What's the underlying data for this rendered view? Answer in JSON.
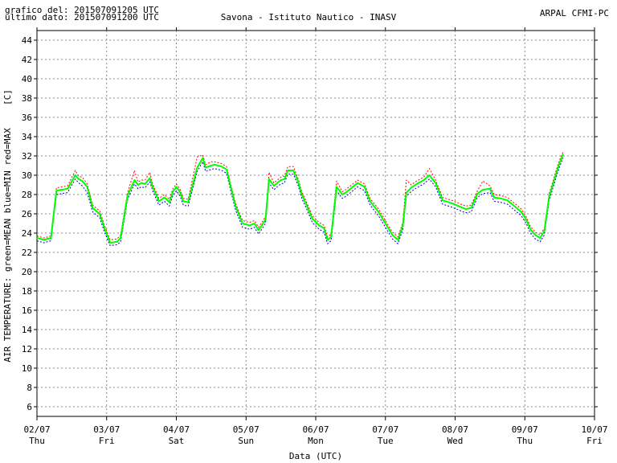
{
  "header": {
    "graph_time": "grafico del: 201507091205 UTC",
    "last_data": "ultimo dato: 201507091200 UTC",
    "station": "Savona - Istituto Nautico - INASV",
    "agency": "ARPAL CFMI-PC"
  },
  "chart_data": {
    "type": "line",
    "title": "Savona - Istituto Nautico - INASV",
    "xlabel": "Data (UTC)",
    "ylabel": "AIR TEMPERATURE: green=MEAN  blue=MIN  red=MAX",
    "unit_label": "[C]",
    "ylim": [
      5,
      45
    ],
    "yticks": [
      6,
      8,
      10,
      12,
      14,
      16,
      18,
      20,
      22,
      24,
      26,
      28,
      30,
      32,
      34,
      36,
      38,
      40,
      42,
      44
    ],
    "xlim_days": [
      0,
      8
    ],
    "grid": true,
    "colors": {
      "mean": "#00ff00",
      "min": "#0000cc",
      "max": "#ff0000",
      "grid": "#888888"
    },
    "xticks": [
      {
        "date": "02/07",
        "day": "Thu"
      },
      {
        "date": "03/07",
        "day": "Fri"
      },
      {
        "date": "04/07",
        "day": "Sat"
      },
      {
        "date": "05/07",
        "day": "Sun"
      },
      {
        "date": "06/07",
        "day": "Mon"
      },
      {
        "date": "07/07",
        "day": "Tue"
      },
      {
        "date": "08/07",
        "day": "Wed"
      },
      {
        "date": "09/07",
        "day": "Thu"
      },
      {
        "date": "10/07",
        "day": "Fri"
      }
    ],
    "series": [
      {
        "name": "MEAN",
        "points": [
          [
            0.0,
            23.5
          ],
          [
            0.1,
            23.3
          ],
          [
            0.2,
            23.5
          ],
          [
            0.28,
            28.4
          ],
          [
            0.36,
            28.5
          ],
          [
            0.44,
            28.6
          ],
          [
            0.55,
            30.0
          ],
          [
            0.6,
            29.6
          ],
          [
            0.65,
            29.4
          ],
          [
            0.72,
            28.8
          ],
          [
            0.8,
            26.6
          ],
          [
            0.9,
            26.0
          ],
          [
            0.97,
            24.5
          ],
          [
            1.05,
            23.0
          ],
          [
            1.15,
            23.1
          ],
          [
            1.2,
            23.5
          ],
          [
            1.3,
            27.9
          ],
          [
            1.4,
            29.5
          ],
          [
            1.45,
            29.0
          ],
          [
            1.5,
            29.2
          ],
          [
            1.55,
            29.1
          ],
          [
            1.62,
            29.7
          ],
          [
            1.66,
            28.8
          ],
          [
            1.75,
            27.3
          ],
          [
            1.83,
            27.7
          ],
          [
            1.9,
            27.2
          ],
          [
            1.95,
            28.3
          ],
          [
            2.0,
            28.8
          ],
          [
            2.05,
            28.3
          ],
          [
            2.1,
            27.3
          ],
          [
            2.17,
            27.2
          ],
          [
            2.3,
            30.8
          ],
          [
            2.38,
            31.8
          ],
          [
            2.42,
            30.8
          ],
          [
            2.5,
            31.0
          ],
          [
            2.55,
            31.1
          ],
          [
            2.65,
            30.9
          ],
          [
            2.72,
            30.6
          ],
          [
            2.78,
            28.8
          ],
          [
            2.85,
            26.8
          ],
          [
            2.95,
            25.0
          ],
          [
            3.05,
            24.8
          ],
          [
            3.12,
            25.0
          ],
          [
            3.18,
            24.3
          ],
          [
            3.28,
            25.4
          ],
          [
            3.33,
            29.6
          ],
          [
            3.4,
            28.9
          ],
          [
            3.5,
            29.5
          ],
          [
            3.55,
            29.6
          ],
          [
            3.6,
            30.5
          ],
          [
            3.68,
            30.5
          ],
          [
            3.75,
            29.3
          ],
          [
            3.8,
            28.0
          ],
          [
            3.87,
            26.9
          ],
          [
            3.95,
            25.5
          ],
          [
            4.05,
            24.8
          ],
          [
            4.12,
            24.5
          ],
          [
            4.17,
            23.3
          ],
          [
            4.22,
            23.6
          ],
          [
            4.3,
            28.8
          ],
          [
            4.38,
            28.0
          ],
          [
            4.43,
            28.2
          ],
          [
            4.5,
            28.6
          ],
          [
            4.6,
            29.2
          ],
          [
            4.7,
            28.8
          ],
          [
            4.78,
            27.3
          ],
          [
            4.9,
            26.2
          ],
          [
            5.0,
            25.0
          ],
          [
            5.1,
            23.8
          ],
          [
            5.18,
            23.3
          ],
          [
            5.25,
            24.8
          ],
          [
            5.3,
            28.2
          ],
          [
            5.37,
            28.7
          ],
          [
            5.45,
            29.1
          ],
          [
            5.55,
            29.5
          ],
          [
            5.63,
            30.0
          ],
          [
            5.72,
            29.2
          ],
          [
            5.82,
            27.4
          ],
          [
            5.95,
            27.1
          ],
          [
            6.05,
            26.8
          ],
          [
            6.15,
            26.5
          ],
          [
            6.23,
            26.6
          ],
          [
            6.32,
            28.1
          ],
          [
            6.4,
            28.5
          ],
          [
            6.5,
            28.6
          ],
          [
            6.56,
            27.7
          ],
          [
            6.65,
            27.6
          ],
          [
            6.75,
            27.4
          ],
          [
            6.85,
            26.8
          ],
          [
            6.95,
            26.2
          ],
          [
            7.02,
            25.4
          ],
          [
            7.08,
            24.4
          ],
          [
            7.15,
            23.8
          ],
          [
            7.22,
            23.5
          ],
          [
            7.28,
            24.2
          ],
          [
            7.35,
            27.8
          ],
          [
            7.45,
            30.2
          ],
          [
            7.5,
            31.3
          ],
          [
            7.55,
            32.2
          ]
        ]
      },
      {
        "name": "MIN",
        "points": [
          [
            0.0,
            23.2
          ],
          [
            0.1,
            23.0
          ],
          [
            0.2,
            23.2
          ],
          [
            0.28,
            28.0
          ],
          [
            0.36,
            28.1
          ],
          [
            0.44,
            28.2
          ],
          [
            0.55,
            29.6
          ],
          [
            0.6,
            29.2
          ],
          [
            0.65,
            28.9
          ],
          [
            0.72,
            28.2
          ],
          [
            0.8,
            26.2
          ],
          [
            0.9,
            25.6
          ],
          [
            0.97,
            24.1
          ],
          [
            1.05,
            22.7
          ],
          [
            1.15,
            22.8
          ],
          [
            1.2,
            23.1
          ],
          [
            1.3,
            27.5
          ],
          [
            1.4,
            29.1
          ],
          [
            1.45,
            28.6
          ],
          [
            1.5,
            28.8
          ],
          [
            1.55,
            28.7
          ],
          [
            1.62,
            29.3
          ],
          [
            1.66,
            28.4
          ],
          [
            1.75,
            26.9
          ],
          [
            1.83,
            27.3
          ],
          [
            1.9,
            26.8
          ],
          [
            1.95,
            27.9
          ],
          [
            2.0,
            28.4
          ],
          [
            2.05,
            27.9
          ],
          [
            2.1,
            26.9
          ],
          [
            2.17,
            26.8
          ],
          [
            2.3,
            30.4
          ],
          [
            2.38,
            31.4
          ],
          [
            2.42,
            30.4
          ],
          [
            2.5,
            30.6
          ],
          [
            2.55,
            30.7
          ],
          [
            2.65,
            30.5
          ],
          [
            2.72,
            30.2
          ],
          [
            2.78,
            28.4
          ],
          [
            2.85,
            26.4
          ],
          [
            2.95,
            24.6
          ],
          [
            3.05,
            24.4
          ],
          [
            3.12,
            24.6
          ],
          [
            3.18,
            23.9
          ],
          [
            3.28,
            25.0
          ],
          [
            3.33,
            29.2
          ],
          [
            3.4,
            28.5
          ],
          [
            3.5,
            29.1
          ],
          [
            3.55,
            29.2
          ],
          [
            3.6,
            30.1
          ],
          [
            3.68,
            30.1
          ],
          [
            3.75,
            28.9
          ],
          [
            3.8,
            27.6
          ],
          [
            3.87,
            26.5
          ],
          [
            3.95,
            25.1
          ],
          [
            4.05,
            24.4
          ],
          [
            4.12,
            24.1
          ],
          [
            4.17,
            22.9
          ],
          [
            4.22,
            23.2
          ],
          [
            4.3,
            28.4
          ],
          [
            4.38,
            27.6
          ],
          [
            4.43,
            27.8
          ],
          [
            4.5,
            28.2
          ],
          [
            4.6,
            28.8
          ],
          [
            4.7,
            28.4
          ],
          [
            4.78,
            26.9
          ],
          [
            4.9,
            25.8
          ],
          [
            5.0,
            24.6
          ],
          [
            5.1,
            23.4
          ],
          [
            5.18,
            22.9
          ],
          [
            5.25,
            24.4
          ],
          [
            5.3,
            27.8
          ],
          [
            5.37,
            28.3
          ],
          [
            5.45,
            28.7
          ],
          [
            5.55,
            29.1
          ],
          [
            5.63,
            29.6
          ],
          [
            5.72,
            28.8
          ],
          [
            5.82,
            27.0
          ],
          [
            5.95,
            26.7
          ],
          [
            6.05,
            26.4
          ],
          [
            6.15,
            26.1
          ],
          [
            6.23,
            26.2
          ],
          [
            6.32,
            27.7
          ],
          [
            6.4,
            28.1
          ],
          [
            6.5,
            28.2
          ],
          [
            6.56,
            27.3
          ],
          [
            6.65,
            27.2
          ],
          [
            6.75,
            27.0
          ],
          [
            6.85,
            26.4
          ],
          [
            6.95,
            25.8
          ],
          [
            7.02,
            25.0
          ],
          [
            7.08,
            24.0
          ],
          [
            7.15,
            23.4
          ],
          [
            7.22,
            23.1
          ],
          [
            7.28,
            23.8
          ],
          [
            7.35,
            27.4
          ],
          [
            7.45,
            29.8
          ],
          [
            7.5,
            30.9
          ],
          [
            7.55,
            31.8
          ]
        ]
      },
      {
        "name": "MAX",
        "points": [
          [
            0.0,
            23.7
          ],
          [
            0.1,
            23.5
          ],
          [
            0.2,
            23.7
          ],
          [
            0.28,
            28.7
          ],
          [
            0.36,
            28.8
          ],
          [
            0.44,
            28.9
          ],
          [
            0.55,
            30.5
          ],
          [
            0.6,
            29.9
          ],
          [
            0.65,
            29.8
          ],
          [
            0.72,
            29.1
          ],
          [
            0.8,
            26.9
          ],
          [
            0.9,
            26.3
          ],
          [
            0.97,
            24.8
          ],
          [
            1.05,
            23.3
          ],
          [
            1.15,
            23.4
          ],
          [
            1.2,
            23.8
          ],
          [
            1.3,
            28.2
          ],
          [
            1.4,
            30.5
          ],
          [
            1.45,
            29.3
          ],
          [
            1.5,
            29.5
          ],
          [
            1.55,
            29.5
          ],
          [
            1.62,
            30.3
          ],
          [
            1.66,
            29.1
          ],
          [
            1.75,
            27.6
          ],
          [
            1.83,
            28.0
          ],
          [
            1.9,
            27.5
          ],
          [
            1.95,
            28.6
          ],
          [
            2.0,
            29.1
          ],
          [
            2.05,
            28.6
          ],
          [
            2.1,
            27.6
          ],
          [
            2.17,
            27.5
          ],
          [
            2.3,
            31.9
          ],
          [
            2.38,
            32.1
          ],
          [
            2.42,
            31.1
          ],
          [
            2.5,
            31.4
          ],
          [
            2.55,
            31.4
          ],
          [
            2.65,
            31.2
          ],
          [
            2.72,
            30.9
          ],
          [
            2.78,
            29.1
          ],
          [
            2.85,
            27.1
          ],
          [
            2.95,
            25.3
          ],
          [
            3.05,
            25.1
          ],
          [
            3.12,
            25.3
          ],
          [
            3.18,
            24.6
          ],
          [
            3.28,
            25.7
          ],
          [
            3.33,
            30.3
          ],
          [
            3.4,
            29.2
          ],
          [
            3.5,
            29.8
          ],
          [
            3.55,
            29.9
          ],
          [
            3.6,
            30.9
          ],
          [
            3.68,
            30.9
          ],
          [
            3.75,
            29.6
          ],
          [
            3.8,
            28.3
          ],
          [
            3.87,
            27.2
          ],
          [
            3.95,
            25.8
          ],
          [
            4.05,
            25.1
          ],
          [
            4.12,
            24.8
          ],
          [
            4.17,
            23.6
          ],
          [
            4.22,
            23.9
          ],
          [
            4.3,
            29.4
          ],
          [
            4.38,
            28.3
          ],
          [
            4.43,
            28.5
          ],
          [
            4.5,
            28.9
          ],
          [
            4.6,
            29.5
          ],
          [
            4.7,
            29.1
          ],
          [
            4.78,
            27.6
          ],
          [
            4.9,
            26.5
          ],
          [
            5.0,
            25.3
          ],
          [
            5.1,
            24.1
          ],
          [
            5.18,
            23.6
          ],
          [
            5.25,
            25.1
          ],
          [
            5.3,
            29.5
          ],
          [
            5.37,
            29.0
          ],
          [
            5.45,
            29.4
          ],
          [
            5.55,
            29.8
          ],
          [
            5.63,
            30.7
          ],
          [
            5.72,
            29.5
          ],
          [
            5.82,
            27.7
          ],
          [
            5.95,
            27.4
          ],
          [
            6.05,
            27.1
          ],
          [
            6.15,
            26.8
          ],
          [
            6.23,
            26.9
          ],
          [
            6.32,
            28.4
          ],
          [
            6.4,
            29.4
          ],
          [
            6.5,
            28.9
          ],
          [
            6.56,
            28.0
          ],
          [
            6.65,
            27.9
          ],
          [
            6.75,
            27.7
          ],
          [
            6.85,
            27.1
          ],
          [
            6.95,
            26.5
          ],
          [
            7.02,
            25.7
          ],
          [
            7.08,
            24.7
          ],
          [
            7.15,
            24.1
          ],
          [
            7.22,
            23.8
          ],
          [
            7.28,
            24.5
          ],
          [
            7.35,
            28.1
          ],
          [
            7.45,
            30.5
          ],
          [
            7.5,
            31.6
          ],
          [
            7.55,
            32.4
          ]
        ]
      }
    ]
  }
}
